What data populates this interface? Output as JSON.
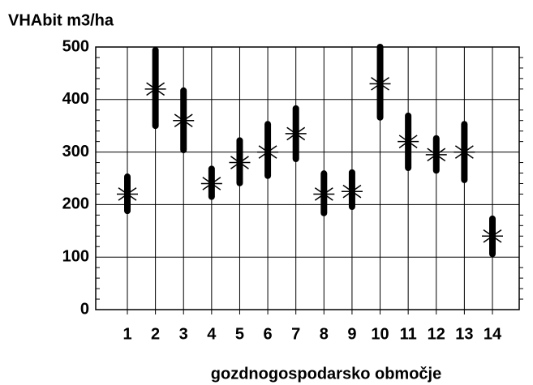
{
  "chart_data": {
    "type": "errorbar",
    "title": "VHAbit  m3/ha",
    "x_label": "gozdnogospodarsko območje",
    "categories": [
      "1",
      "2",
      "3",
      "4",
      "5",
      "6",
      "7",
      "8",
      "9",
      "10",
      "11",
      "12",
      "13",
      "14"
    ],
    "values": [
      220,
      420,
      360,
      240,
      280,
      300,
      335,
      220,
      225,
      430,
      320,
      295,
      300,
      140
    ],
    "lower": [
      188,
      350,
      304,
      215,
      241,
      255,
      287,
      184,
      196,
      366,
      270,
      265,
      247,
      106
    ],
    "upper": [
      253,
      494,
      417,
      268,
      322,
      353,
      383,
      259,
      261,
      500,
      369,
      326,
      353,
      173
    ],
    "color": "#000000",
    "ylim": [
      0,
      500
    ],
    "yticks": [
      0,
      100,
      200,
      300,
      400,
      500
    ],
    "grid": true
  }
}
